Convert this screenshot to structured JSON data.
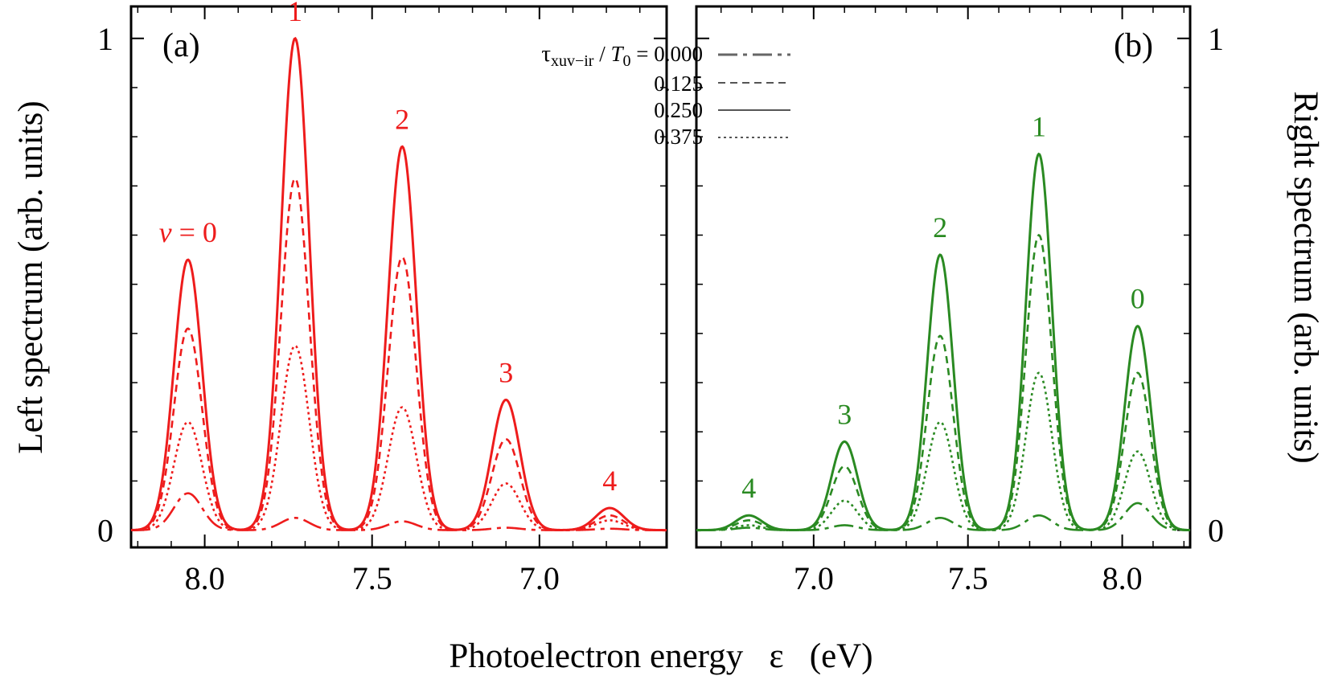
{
  "figure": {
    "xlabel": "Photoelectron energy   ε   (eV)",
    "legend": {
      "tau_symbol": "τ",
      "tau_subscript": "xuv−ir",
      "slash": " / ",
      "T_symbol": "T",
      "T_subscript": "0",
      "equals": " = ",
      "entries": [
        {
          "value": "0.000",
          "style": "dashdot"
        },
        {
          "value": "0.125",
          "style": "dashed"
        },
        {
          "value": "0.250",
          "style": "solid"
        },
        {
          "value": "0.375",
          "style": "dotted"
        }
      ]
    }
  },
  "chart_data": [
    {
      "type": "line",
      "panel_label": "(a)",
      "ylabel": "Left spectrum   (arb. units)",
      "color": "#ee1c1c",
      "xlim": [
        8.22,
        6.62
      ],
      "x_reversed": true,
      "ylim": [
        -0.035,
        1.065
      ],
      "xticks": [
        8.0,
        7.5,
        7.0
      ],
      "xtick_labels": [
        "8.0",
        "7.5",
        "7.0"
      ],
      "yticks": [
        0,
        1
      ],
      "ytick_labels": [
        "0",
        "1"
      ],
      "peak_width_sigma": 0.042,
      "peaks": [
        {
          "label": "v = 0",
          "v_italic": "v",
          "v_rest": " = 0",
          "x": 8.05
        },
        {
          "label": "1",
          "x": 7.73
        },
        {
          "label": "2",
          "x": 7.41
        },
        {
          "label": "3",
          "x": 7.1
        },
        {
          "label": "4",
          "x": 6.79
        }
      ],
      "series": [
        {
          "name": "0.000",
          "style": "dashdot",
          "values": [
            0.075,
            0.025,
            0.018,
            0.005,
            0.003
          ]
        },
        {
          "name": "0.125",
          "style": "dashed",
          "values": [
            0.41,
            0.715,
            0.555,
            0.185,
            0.03
          ]
        },
        {
          "name": "0.250",
          "style": "solid",
          "values": [
            0.55,
            1.0,
            0.78,
            0.265,
            0.045
          ]
        },
        {
          "name": "0.375",
          "style": "dotted",
          "values": [
            0.22,
            0.375,
            0.25,
            0.095,
            0.02
          ]
        }
      ]
    },
    {
      "type": "line",
      "panel_label": "(b)",
      "ylabel": "Right spectrum   (arb. units)",
      "color": "#2a8a22",
      "xlim": [
        6.62,
        8.22
      ],
      "x_reversed": false,
      "ylim": [
        -0.035,
        1.065
      ],
      "xticks": [
        7.0,
        7.5,
        8.0
      ],
      "xtick_labels": [
        "7.0",
        "7.5",
        "8.0"
      ],
      "yticks": [
        0,
        1
      ],
      "ytick_labels": [
        "0",
        "1"
      ],
      "peak_width_sigma": 0.042,
      "peaks": [
        {
          "label": "4",
          "x": 6.79
        },
        {
          "label": "3",
          "x": 7.1
        },
        {
          "label": "2",
          "x": 7.41
        },
        {
          "label": "1",
          "x": 7.73
        },
        {
          "label": "0",
          "x": 8.05
        }
      ],
      "series": [
        {
          "name": "0.000",
          "style": "dashdot",
          "values": [
            0.005,
            0.01,
            0.025,
            0.03,
            0.055
          ]
        },
        {
          "name": "0.125",
          "style": "dashed",
          "values": [
            0.02,
            0.13,
            0.395,
            0.6,
            0.32
          ]
        },
        {
          "name": "0.250",
          "style": "solid",
          "values": [
            0.03,
            0.18,
            0.56,
            0.765,
            0.415
          ]
        },
        {
          "name": "0.375",
          "style": "dotted",
          "values": [
            0.01,
            0.06,
            0.22,
            0.32,
            0.16
          ]
        }
      ]
    }
  ]
}
